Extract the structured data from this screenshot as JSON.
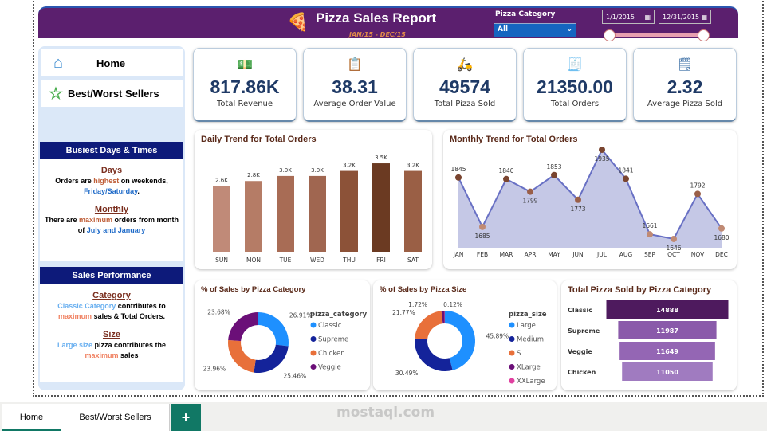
{
  "header": {
    "title": "Pizza Sales Report",
    "subtitle": "JAN/15  -  DEC/15",
    "category_label": "Pizza Category",
    "category_value": "All",
    "date_start": "1/1/2015",
    "date_end": "12/31/2015",
    "date_range_fraction": [
      0,
      1
    ]
  },
  "nav": {
    "home": "Home",
    "best_worst": "Best/Worst Sellers"
  },
  "busiest": {
    "title": "Busiest Days & Times",
    "days_h": "Days",
    "days_1": "Orders are ",
    "days_2": "highest",
    "days_3": " on weekends,",
    "days_4": "Friday/Saturday",
    "days_5": ".",
    "monthly_h": "Monthly",
    "monthly_1": "There are ",
    "monthly_2": "maximum",
    "monthly_3": " orders from month of ",
    "monthly_4": "July and January"
  },
  "performance": {
    "title": "Sales Performance",
    "cat_h": "Category",
    "cat_1": "Classic Category",
    "cat_2": " contributes to ",
    "cat_3": "maximum",
    "cat_4": " sales & Total Orders.",
    "size_h": "Size",
    "size_1": "Large size",
    "size_2": " pizza contributes the ",
    "size_3": "maximum",
    "size_4": " sales"
  },
  "kpis": [
    {
      "value": "817.86K",
      "label": "Total Revenue",
      "icon": "money-icon"
    },
    {
      "value": "38.31",
      "label": "Average Order Value",
      "icon": "clipboard-icon"
    },
    {
      "value": "49574",
      "label": "Total Pizza Sold",
      "icon": "delivery-icon"
    },
    {
      "value": "21350.00",
      "label": "Total Orders",
      "icon": "order-list-icon"
    },
    {
      "value": "2.32",
      "label": "Average Pizza Sold",
      "icon": "receipt-icon"
    }
  ],
  "daily": {
    "title": "Daily Trend for Total Orders",
    "days": [
      "SUN",
      "MON",
      "TUE",
      "WED",
      "THU",
      "FRI",
      "SAT"
    ],
    "values": [
      2.6,
      2.8,
      3.0,
      3.0,
      3.2,
      3.5,
      3.2
    ],
    "labels": [
      "2.6K",
      "2.8K",
      "3.0K",
      "3.0K",
      "3.2K",
      "3.5K",
      "3.2K"
    ],
    "colors": [
      "#c08a78",
      "#b57c66",
      "#a86c55",
      "#a06650",
      "#8c5238",
      "#6b3a22",
      "#9a5f45"
    ]
  },
  "monthly": {
    "title": "Monthly Trend for Total Orders",
    "months": [
      "JAN",
      "FEB",
      "MAR",
      "APR",
      "MAY",
      "JUN",
      "JUL",
      "AUG",
      "SEP",
      "OCT",
      "NOV",
      "DEC"
    ],
    "values": [
      1845,
      1685,
      1840,
      1799,
      1853,
      1773,
      1935,
      1841,
      1661,
      1646,
      1792,
      1680
    ]
  },
  "cat_pie": {
    "title": "% of Sales by Pizza Category",
    "legend_title": "pizza_category",
    "items": [
      {
        "name": "Classic",
        "pct": 26.91,
        "label": "26.91%",
        "color": "#1e90ff"
      },
      {
        "name": "Supreme",
        "pct": 25.46,
        "label": "25.46%",
        "color": "#14239a"
      },
      {
        "name": "Chicken",
        "pct": 23.96,
        "label": "23.96%",
        "color": "#e8703a"
      },
      {
        "name": "Veggie",
        "pct": 23.68,
        "label": "23.68%",
        "color": "#6b0f78"
      }
    ]
  },
  "size_pie": {
    "title": "% of Sales by Pizza Size",
    "legend_title": "pizza_size",
    "items": [
      {
        "name": "Large",
        "pct": 45.89,
        "label": "45.89%",
        "color": "#1e90ff"
      },
      {
        "name": "Medium",
        "pct": 30.49,
        "label": "30.49%",
        "color": "#14239a"
      },
      {
        "name": "S",
        "pct": 21.77,
        "label": "21.77%",
        "color": "#e8703a"
      },
      {
        "name": "XLarge",
        "pct": 1.72,
        "label": "1.72%",
        "color": "#6b0f78"
      },
      {
        "name": "XXLarge",
        "pct": 0.12,
        "label": "0.12%",
        "color": "#e040a0"
      }
    ]
  },
  "sold": {
    "title": "Total Pizza Sold by Pizza Category",
    "items": [
      {
        "name": "Classic",
        "value": 14888,
        "color": "#4e1a5e"
      },
      {
        "name": "Supreme",
        "value": 11987,
        "color": "#8a5aaa"
      },
      {
        "name": "Veggie",
        "value": 11649,
        "color": "#9466b4"
      },
      {
        "name": "Chicken",
        "value": 11050,
        "color": "#a07bc0"
      }
    ]
  },
  "tabs": {
    "home": "Home",
    "best_worst": "Best/Worst Sellers",
    "add": "+"
  },
  "watermark": "mostaql.com"
}
